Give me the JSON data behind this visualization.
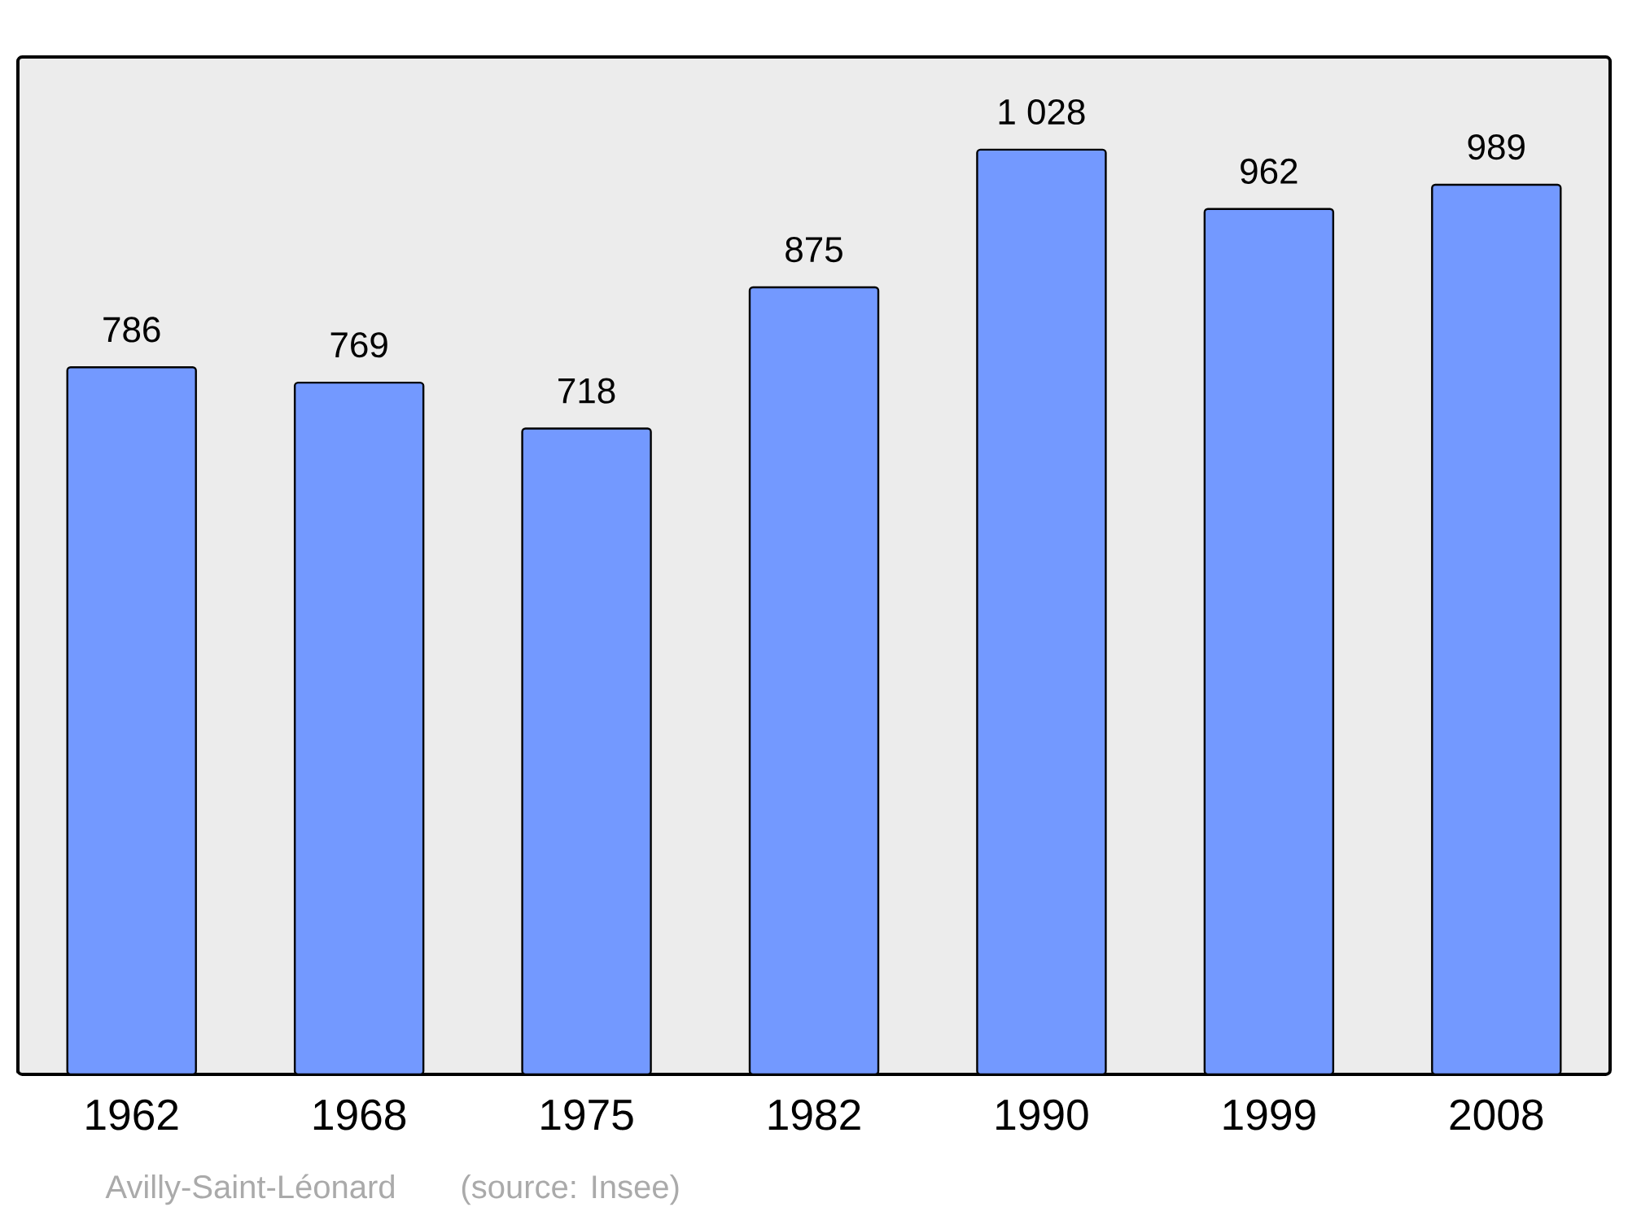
{
  "chart_data": {
    "type": "bar",
    "categories": [
      "1962",
      "1968",
      "1975",
      "1982",
      "1990",
      "1999",
      "2008"
    ],
    "values": [
      786,
      769,
      718,
      875,
      1028,
      962,
      989
    ],
    "value_labels": [
      "786",
      "769",
      "718",
      "875",
      "1 028",
      "962",
      "989"
    ],
    "color": "#7399ff",
    "ylim": [
      0,
      1131
    ],
    "annotations": [
      "Avilly-Saint-Léonard",
      "(source: Insee)"
    ]
  }
}
